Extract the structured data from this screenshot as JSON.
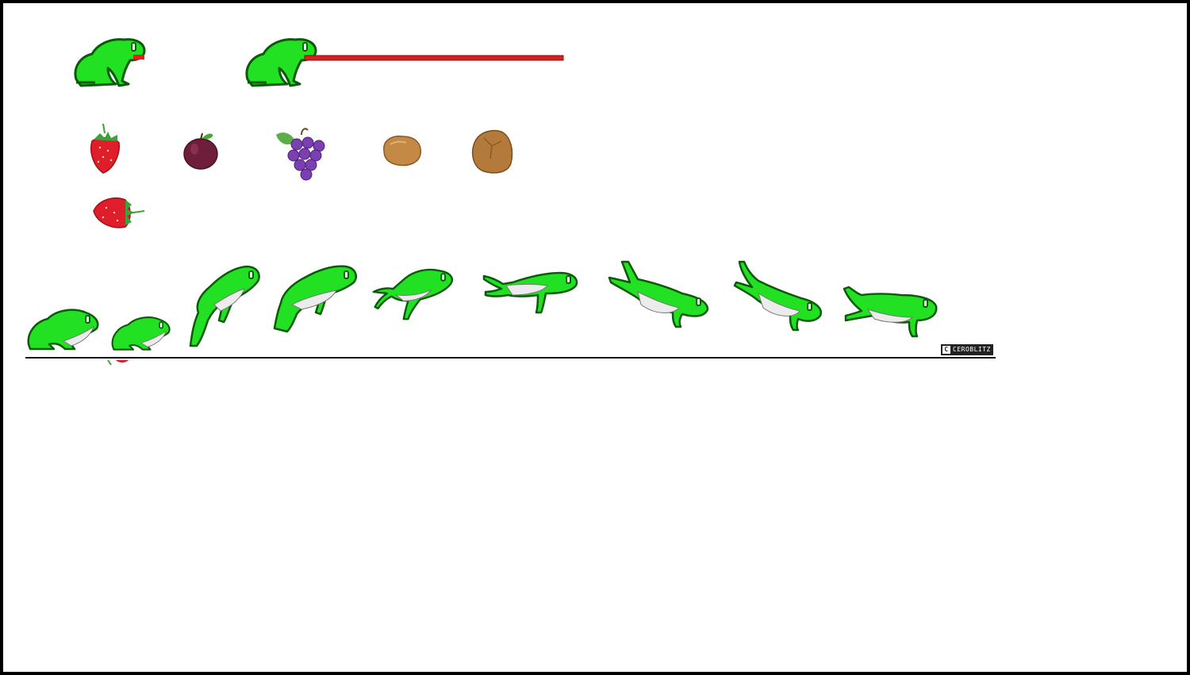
{
  "sheet": {
    "background": "#ffffff",
    "border_color": "#000000"
  },
  "frog": {
    "body_color": "#22e022",
    "outline_color": "#006600",
    "belly_color": "#e8e8e8",
    "tongue_color": "#e02020"
  },
  "tongue_attack_frames": [
    {
      "name": "frog-tongue-short"
    },
    {
      "name": "frog-tongue-extended"
    }
  ],
  "items": [
    {
      "name": "strawberry-icon",
      "color": "#e01e2b"
    },
    {
      "name": "plum-icon",
      "color": "#6e1e3a"
    },
    {
      "name": "grapes-icon",
      "color": "#7a3fb0"
    },
    {
      "name": "small-rock-icon",
      "color": "#c48a45"
    },
    {
      "name": "large-rock-icon",
      "color": "#b37a3c"
    },
    {
      "name": "strawberry-sideways-icon",
      "color": "#e01e2b"
    }
  ],
  "jump_animation_frame_count": 9,
  "watermark": {
    "symbol": "C",
    "text": "CEROBLITZ"
  }
}
